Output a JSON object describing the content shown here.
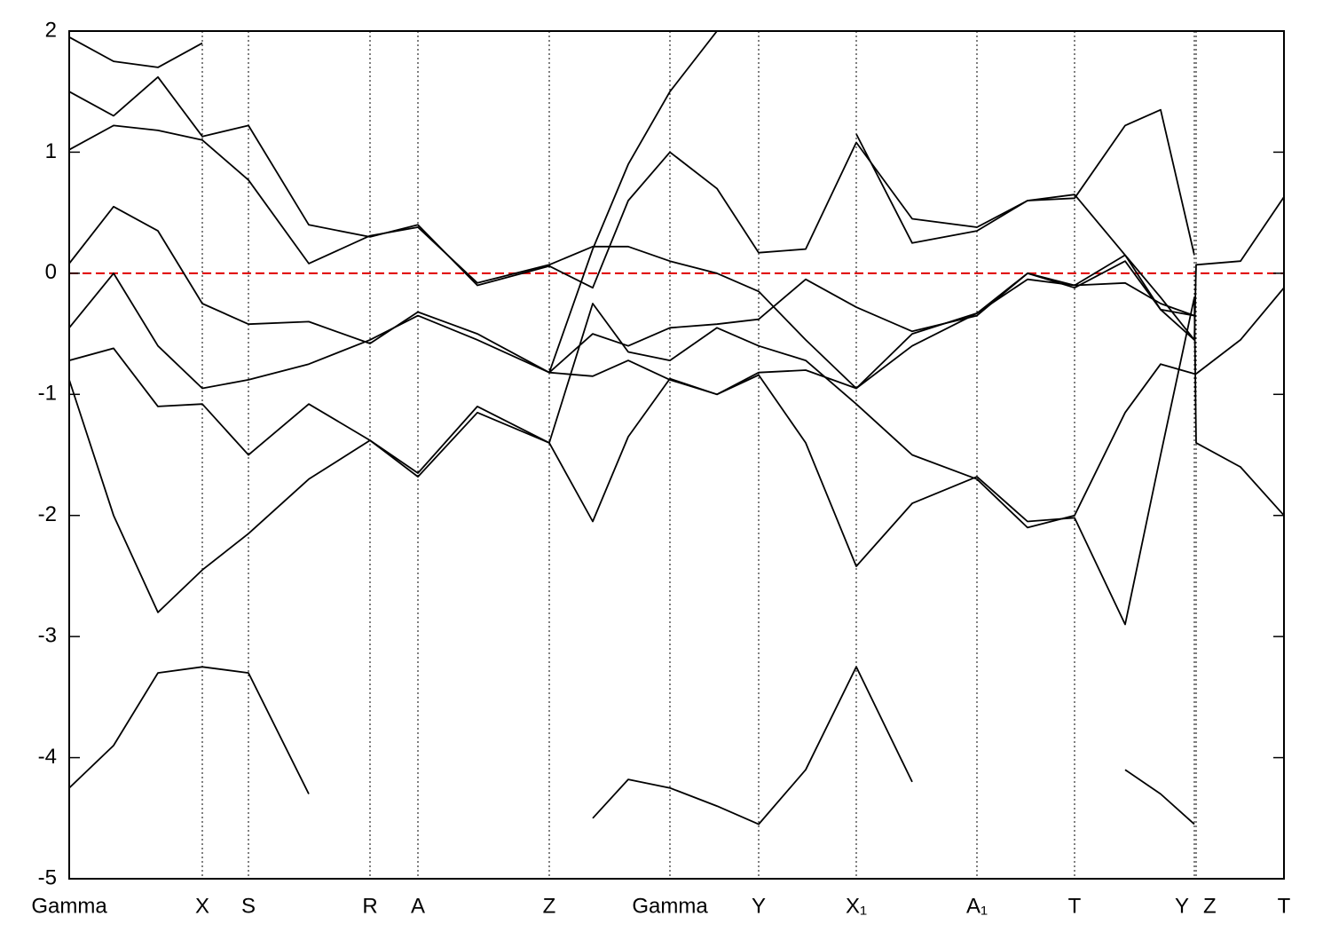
{
  "chart_data": {
    "type": "line",
    "x": [
      0,
      0.5,
      1.0,
      1.5,
      2.02,
      2.7,
      3.39,
      3.93,
      4.6,
      5.41,
      5.9,
      6.3,
      6.77,
      7.3,
      7.77,
      8.3,
      8.87,
      9.5,
      10.23,
      10.8,
      11.33,
      11.9,
      12.3,
      12.68,
      12.7,
      13.2,
      13.69
    ],
    "xlim": [
      0,
      13.69
    ],
    "ylim": [
      -5,
      2
    ],
    "yticks": [
      -5,
      -4,
      -3,
      -2,
      -1,
      0,
      1,
      2
    ],
    "xticks": [
      {
        "value": 0,
        "label": "Gamma"
      },
      {
        "value": 1.5,
        "label": "X"
      },
      {
        "value": 2.02,
        "label": "S"
      },
      {
        "value": 3.39,
        "label": "R"
      },
      {
        "value": 3.93,
        "label": "A"
      },
      {
        "value": 5.41,
        "label": "Z"
      },
      {
        "value": 6.77,
        "label": "Gamma"
      },
      {
        "value": 7.77,
        "label": "Y"
      },
      {
        "value": 8.87,
        "label": "X₁"
      },
      {
        "value": 10.23,
        "label": "A₁"
      },
      {
        "value": 11.33,
        "label": "T"
      },
      {
        "value": 12.68,
        "label": "Y"
      },
      {
        "value": 12.7,
        "label": "Z"
      },
      {
        "value": 13.69,
        "label": "T"
      }
    ],
    "grid": true,
    "hline": {
      "value": 0,
      "color": "#e00000"
    },
    "series": [
      {
        "color": "#000000",
        "values": [
          -4.25,
          -3.9,
          -3.3,
          -3.25,
          -3.3,
          -4.3,
          null,
          null,
          null,
          null,
          -4.5,
          -4.18,
          -4.25,
          -4.4,
          -4.55,
          -4.1,
          -3.25,
          -4.2,
          null,
          null,
          null,
          -4.1,
          -4.3,
          -4.55,
          null,
          null,
          null
        ]
      },
      {
        "color": "#000000",
        "values": [
          -0.88,
          -2.0,
          -2.8,
          -2.45,
          -2.15,
          -1.7,
          -1.38,
          -1.68,
          -1.15,
          -1.4,
          -2.05,
          -1.35,
          -0.87,
          -1.0,
          -0.84,
          -1.4,
          -2.42,
          -1.9,
          -1.68,
          -2.05,
          -2.02,
          -2.9,
          -1.5,
          -0.2,
          -1.4,
          -1.6,
          -2.0
        ]
      },
      {
        "color": "#000000",
        "values": [
          -0.72,
          -0.62,
          -1.1,
          -1.08,
          -1.5,
          -1.08,
          -1.38,
          -1.65,
          -1.1,
          -1.4,
          -0.25,
          -0.65,
          -0.72,
          -0.45,
          -0.6,
          -0.72,
          -1.08,
          -1.5,
          -1.7,
          -2.1,
          -2.0,
          -1.15,
          -0.75,
          -0.83,
          -0.83,
          -0.55,
          -0.12
        ]
      },
      {
        "color": "#000000",
        "values": [
          -0.45,
          0.0,
          -0.6,
          -0.95,
          -0.88,
          -0.75,
          -0.55,
          -0.35,
          -0.55,
          -0.82,
          -0.85,
          -0.72,
          -0.88,
          -1.0,
          -0.82,
          -0.8,
          -0.95,
          -0.6,
          -0.33,
          -0.05,
          -0.1,
          -0.08,
          -0.25,
          -0.35,
          null,
          null,
          null
        ]
      },
      {
        "color": "#000000",
        "values": [
          0.08,
          0.55,
          0.35,
          -0.25,
          -0.42,
          -0.4,
          -0.58,
          -0.32,
          -0.5,
          -0.82,
          -0.5,
          -0.6,
          -0.45,
          -0.42,
          -0.38,
          -0.05,
          -0.28,
          -0.48,
          -0.35,
          0.0,
          -0.1,
          0.15,
          -0.2,
          -0.55,
          0.07,
          0.1,
          0.63
        ]
      },
      {
        "color": "#000000",
        "values": [
          1.02,
          1.22,
          1.18,
          1.1,
          0.77,
          0.08,
          0.31,
          0.38,
          -0.08,
          0.07,
          0.22,
          0.22,
          0.1,
          0.0,
          -0.15,
          -0.55,
          -0.95,
          -0.5,
          -0.33,
          0.0,
          -0.12,
          0.1,
          -0.3,
          -0.35,
          null,
          null,
          null
        ]
      },
      {
        "color": "#000000",
        "values": [
          1.5,
          1.3,
          1.62,
          1.13,
          1.22,
          0.4,
          0.3,
          0.4,
          -0.1,
          0.06,
          -0.12,
          0.6,
          1.0,
          0.7,
          0.17,
          0.2,
          1.08,
          0.45,
          0.38,
          0.6,
          0.65,
          0.15,
          -0.3,
          -0.55,
          null,
          null,
          null
        ]
      },
      {
        "color": "#000000",
        "values": [
          1.95,
          1.75,
          1.7,
          1.9,
          null,
          null,
          null,
          null,
          null,
          -0.82,
          0.2,
          0.9,
          1.5,
          2.0,
          null,
          null,
          1.15,
          0.25,
          0.35,
          0.6,
          0.62,
          1.22,
          1.35,
          0.15,
          null,
          null,
          null
        ]
      }
    ]
  }
}
